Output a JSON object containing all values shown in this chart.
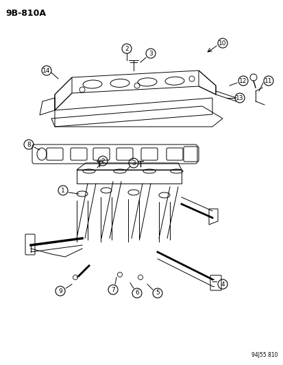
{
  "title_code": "9B-810A",
  "footer_code": "94J55 810",
  "bg_color": "#ffffff",
  "line_color": "#000000",
  "label_fontsize": 7,
  "title_fontsize": 9,
  "part_numbers": [
    1,
    2,
    3,
    4,
    5,
    6,
    7,
    8,
    9,
    10,
    11,
    12,
    13,
    14
  ],
  "intake_manifold": {
    "x": [
      0.12,
      0.72
    ],
    "y": [
      0.62,
      0.77
    ],
    "color": "#222222"
  },
  "exhaust_manifold": {
    "x": [
      0.05,
      0.78
    ],
    "y": [
      0.22,
      0.5
    ],
    "color": "#222222"
  },
  "gasket": {
    "x": [
      0.05,
      0.68
    ],
    "y": [
      0.52,
      0.6
    ],
    "color": "#222222"
  }
}
